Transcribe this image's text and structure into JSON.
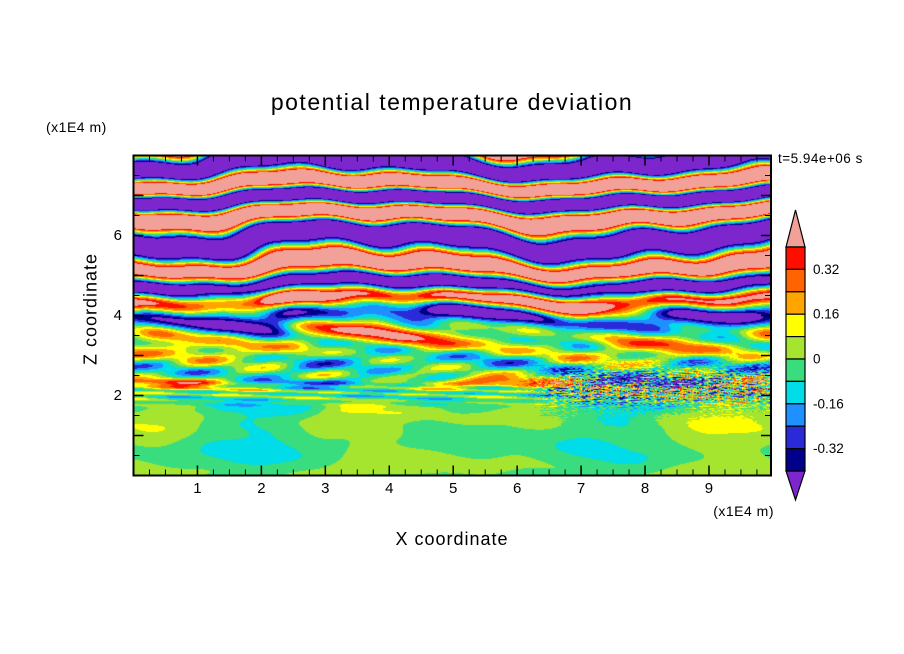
{
  "page": {
    "background": "#ffffff"
  },
  "chart_data": {
    "type": "heatmap",
    "title": "potential temperature deviation",
    "xlabel": "X coordinate",
    "ylabel": "Z coordinate",
    "x_unit_label": "(x1E4 m)",
    "y_unit_label": "(x1E4 m)",
    "time_annotation": "t=5.94e+06 s",
    "xlim": [
      0,
      9.97
    ],
    "ylim": [
      0,
      8
    ],
    "x_ticks": [
      1,
      2,
      3,
      4,
      5,
      6,
      7,
      8,
      9
    ],
    "x_minor_step": 0.25,
    "y_ticks_major": [
      1,
      2,
      3,
      4,
      5,
      6,
      7
    ],
    "y_tick_labels": [
      2,
      4,
      6
    ],
    "y_minor_step": 0.5,
    "grid": false,
    "legend_position": "right-colorbar",
    "colorbar": {
      "levels": [
        -0.4,
        -0.32,
        -0.24,
        -0.16,
        -0.08,
        0,
        0.08,
        0.16,
        0.24,
        0.32,
        0.4
      ],
      "colors": [
        "#7D26CD",
        "#00008B",
        "#2A2AD8",
        "#1E90FF",
        "#00DCE8",
        "#3ADD7E",
        "#A5E42F",
        "#FFFF00",
        "#FFA500",
        "#FF6400",
        "#FF0E00",
        "#F2A198"
      ],
      "labeled_levels": [
        0.32,
        0.16,
        0,
        -0.16,
        -0.32
      ],
      "labels": [
        "0.32",
        "0.16",
        "0",
        "-0.16",
        "-0.32"
      ]
    },
    "field_model": {
      "baseline": -0.015,
      "amp": {
        "a0": 0.04,
        "a1": 0.8,
        "z0": 1.6,
        "z1": 6.2,
        "pow": 1.5
      },
      "lambda_z": 1.02,
      "z_warp": [
        0.8,
        2.6,
        0.7
      ],
      "phase_mods": [
        [
          1.1,
          6.8,
          0.25,
          0.0
        ],
        [
          0.5,
          2.6,
          0.6,
          1.3
        ],
        [
          0.25,
          1.2,
          1.5,
          4.0
        ]
      ],
      "waves": [
        [
          0.16,
          3.4,
          1.8,
          3.1,
          0.62,
          2.0
        ],
        [
          0.1,
          2.6,
          0.5,
          1.4,
          -0.5,
          1.0
        ],
        [
          0.12,
          2.05,
          0.05,
          3.3,
          0.16,
          2.2
        ],
        [
          0.28,
          2.32,
          0.015,
          5.1,
          0,
          0.8
        ],
        [
          0.055,
          0.9,
          1.2,
          5.2,
          0,
          2.6
        ],
        [
          0.05,
          1.3,
          0.8,
          2.9,
          0,
          0.5
        ],
        [
          0.12,
          4.35,
          0.35,
          4.0,
          3.0,
          0.6
        ],
        [
          -0.1,
          3.6,
          0.4,
          3.5,
          2.5,
          1.2
        ]
      ],
      "speckle": [
        0.5,
        2.2,
        0.18,
        5.8,
        7.2
      ]
    }
  }
}
